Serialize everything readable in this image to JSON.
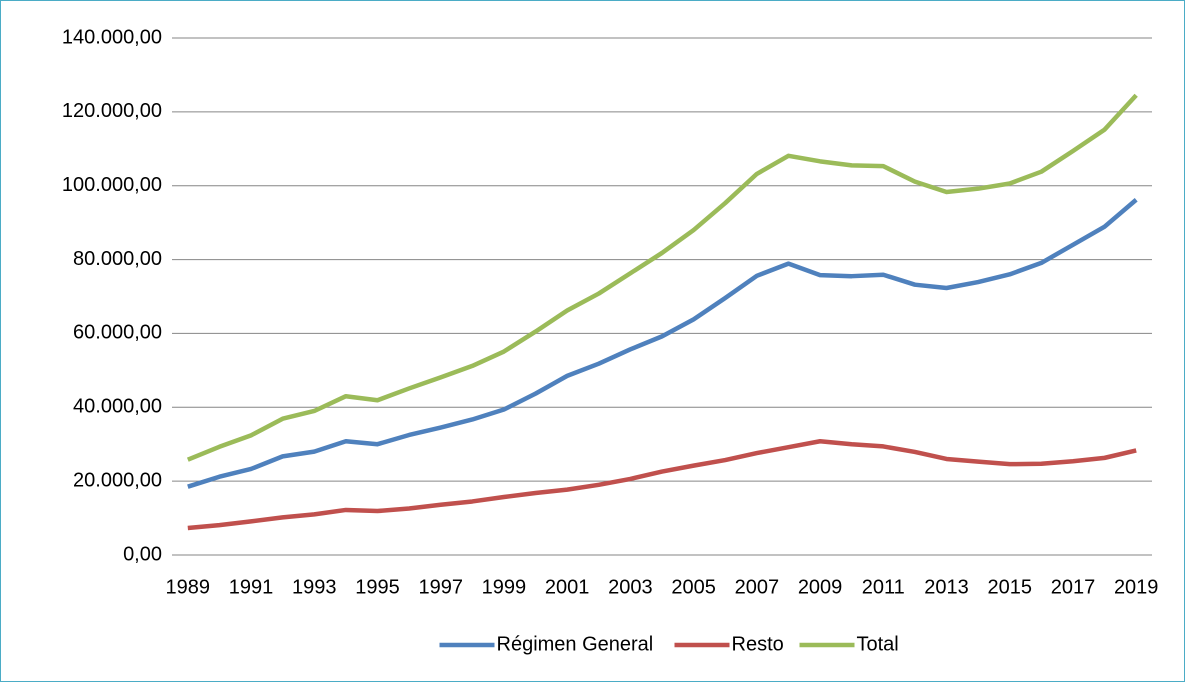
{
  "chart_data": {
    "type": "line",
    "categories": [
      "1989",
      null,
      "1991",
      null,
      "1993",
      null,
      "1995",
      null,
      "1997",
      null,
      "1999",
      null,
      "2001",
      null,
      "2003",
      null,
      "2005",
      null,
      "2007",
      null,
      "2009",
      null,
      "2011",
      null,
      "2013",
      null,
      "2015",
      null,
      "2017",
      null,
      "2019"
    ],
    "series": [
      {
        "name": "Régimen General",
        "color": "#4f81bd",
        "values": [
          18500,
          21200,
          23300,
          26700,
          28000,
          30800,
          30000,
          32500,
          34500,
          36700,
          39400,
          43700,
          48500,
          51800,
          55700,
          59200,
          63800,
          69600,
          75600,
          78900,
          75800,
          75500,
          75900,
          73200,
          72300,
          73900,
          76000,
          79100,
          84000,
          88900,
          96200
        ]
      },
      {
        "name": "Resto",
        "color": "#c0504d",
        "values": [
          7300,
          8100,
          9100,
          10200,
          11000,
          12200,
          11900,
          12600,
          13600,
          14500,
          15700,
          16800,
          17700,
          19000,
          20600,
          22600,
          24200,
          25700,
          27600,
          29200,
          30800,
          30000,
          29400,
          27900,
          26000,
          25300,
          24600,
          24700,
          25400,
          26300,
          28300
        ]
      },
      {
        "name": "Total",
        "color": "#9bbb59",
        "values": [
          25800,
          29300,
          32400,
          36900,
          39000,
          43000,
          41900,
          45100,
          48100,
          51200,
          55100,
          60500,
          66200,
          70800,
          76300,
          81800,
          88000,
          95300,
          103200,
          108100,
          106600,
          105500,
          105300,
          101100,
          98300,
          99200,
          100600,
          103800,
          109400,
          115200,
          124500
        ]
      }
    ],
    "ylim": [
      0,
      140000
    ],
    "yticks": [
      {
        "value": 0,
        "label": "0,00"
      },
      {
        "value": 20000,
        "label": "20.000,00"
      },
      {
        "value": 40000,
        "label": "40.000,00"
      },
      {
        "value": 60000,
        "label": "60.000,00"
      },
      {
        "value": 80000,
        "label": "80.000,00"
      },
      {
        "value": 100000,
        "label": "100.000,00"
      },
      {
        "value": 120000,
        "label": "120.000,00"
      },
      {
        "value": 140000,
        "label": "140.000,00"
      }
    ],
    "grid": true,
    "legend": "bottom"
  }
}
